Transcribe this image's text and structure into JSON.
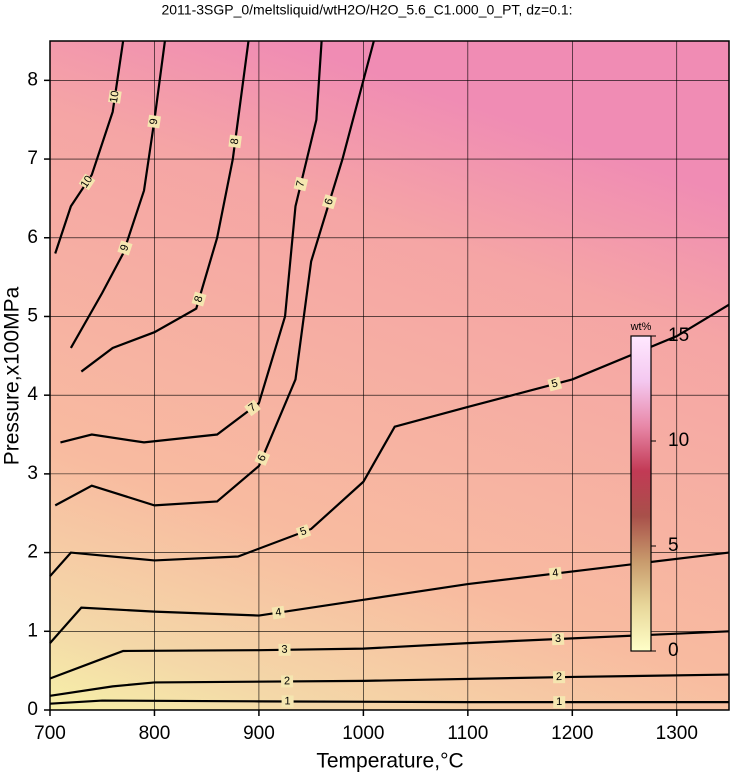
{
  "chart_data": {
    "type": "contour",
    "title": "2011-3SGP_0/meltsliquid/wtH2O/H2O_5.6_C1.000_0_PT, dz=0.1:",
    "x_label": "Temperature,°C",
    "y_label": "Pressure,x100MPa",
    "xlim": [
      700,
      1350
    ],
    "ylim": [
      0,
      8.5
    ],
    "xticks": [
      700,
      800,
      900,
      1000,
      1100,
      1200,
      1300
    ],
    "yticks": [
      0,
      1,
      2,
      3,
      4,
      5,
      6,
      7,
      8
    ],
    "grid": true,
    "contours": [
      {
        "level": 1,
        "x": [
          700,
          750,
          900,
          1100,
          1350
        ],
        "y": [
          0.08,
          0.12,
          0.11,
          0.1,
          0.1
        ]
      },
      {
        "level": 2,
        "x": [
          700,
          760,
          800,
          1000,
          1200,
          1350
        ],
        "y": [
          0.18,
          0.3,
          0.35,
          0.37,
          0.42,
          0.45
        ]
      },
      {
        "level": 3,
        "x": [
          700,
          750,
          770,
          900,
          1000,
          1100,
          1350
        ],
        "y": [
          0.4,
          0.65,
          0.75,
          0.76,
          0.78,
          0.85,
          1.0
        ]
      },
      {
        "level": 4,
        "x": [
          700,
          730,
          800,
          900,
          1000,
          1100,
          1350
        ],
        "y": [
          0.85,
          1.3,
          1.25,
          1.2,
          1.4,
          1.6,
          2.0
        ]
      },
      {
        "level": 5,
        "x": [
          700,
          720,
          800,
          880,
          950,
          1000,
          1030,
          1100,
          1200,
          1300,
          1350
        ],
        "y": [
          1.7,
          2.0,
          1.9,
          1.95,
          2.3,
          2.9,
          3.6,
          3.85,
          4.2,
          4.75,
          5.15
        ]
      },
      {
        "level": 6,
        "x": [
          705,
          740,
          800,
          860,
          900,
          935,
          950,
          980,
          1010
        ],
        "y": [
          2.6,
          2.85,
          2.6,
          2.65,
          3.1,
          4.2,
          5.7,
          7.0,
          8.5
        ]
      },
      {
        "level": 7,
        "x": [
          710,
          740,
          790,
          860,
          900,
          925,
          935,
          955,
          960
        ],
        "y": [
          3.4,
          3.5,
          3.4,
          3.5,
          3.9,
          5.0,
          6.4,
          7.5,
          8.5
        ]
      },
      {
        "level": 8,
        "x": [
          730,
          760,
          800,
          840,
          860,
          875,
          890
        ],
        "y": [
          4.3,
          4.6,
          4.8,
          5.1,
          6.0,
          7.0,
          8.5
        ]
      },
      {
        "level": 9,
        "x": [
          720,
          750,
          770,
          790,
          800,
          810
        ],
        "y": [
          4.6,
          5.3,
          5.8,
          6.6,
          7.5,
          8.5
        ]
      },
      {
        "level": 10,
        "x": [
          705,
          720,
          740,
          760,
          770
        ],
        "y": [
          5.8,
          6.4,
          6.8,
          7.6,
          8.5
        ]
      }
    ],
    "colorbar": {
      "label": "wt%",
      "lim": [
        0,
        15
      ],
      "ticks": [
        0,
        5,
        10,
        15
      ],
      "colors": [
        "#ffffc8",
        "#e8d79a",
        "#c89a6c",
        "#a8504a",
        "#c23a55",
        "#e888a8",
        "#f4c8f0",
        "#ffe8ff"
      ]
    }
  }
}
